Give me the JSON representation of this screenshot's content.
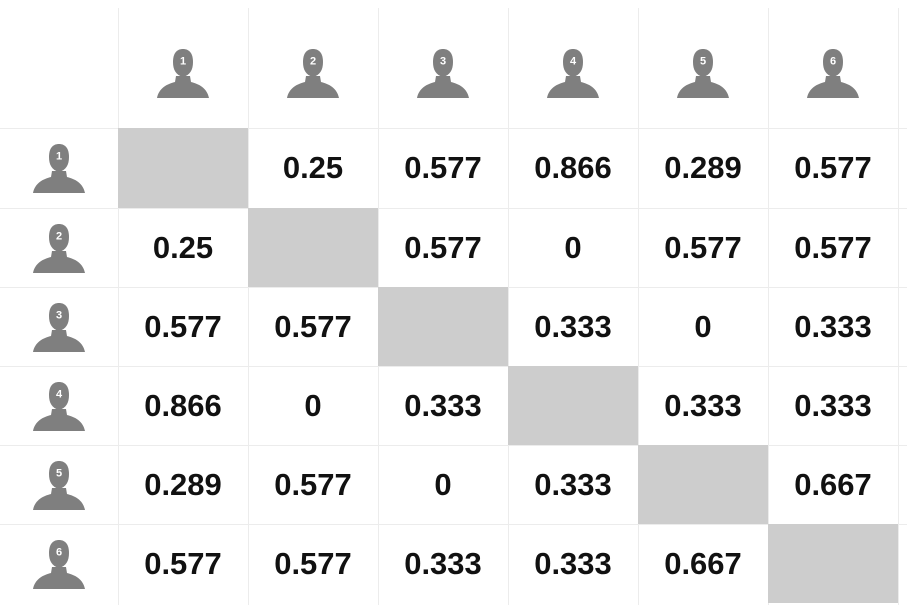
{
  "matrix": {
    "users": [
      {
        "id": "1",
        "icon": "user-icon"
      },
      {
        "id": "2",
        "icon": "user-icon"
      },
      {
        "id": "3",
        "icon": "user-icon"
      },
      {
        "id": "4",
        "icon": "user-icon"
      },
      {
        "id": "5",
        "icon": "user-icon"
      },
      {
        "id": "6",
        "icon": "user-icon"
      }
    ],
    "rows": [
      [
        "",
        "0.25",
        "0.577",
        "0.866",
        "0.289",
        "0.577"
      ],
      [
        "0.25",
        "",
        "0.577",
        "0",
        "0.577",
        "0.577"
      ],
      [
        "0.577",
        "0.577",
        "",
        "0.333",
        "0",
        "0.333"
      ],
      [
        "0.866",
        "0",
        "0.333",
        "",
        "0.333",
        "0.333"
      ],
      [
        "0.289",
        "0.577",
        "0",
        "0.333",
        "",
        "0.667"
      ],
      [
        "0.577",
        "0.577",
        "0.333",
        "0.333",
        "0.667",
        ""
      ]
    ],
    "colors": {
      "icon": "#7f7f7f",
      "diagonal": "#cdcdcd",
      "text": "#111111",
      "grid": "#ececec"
    }
  }
}
